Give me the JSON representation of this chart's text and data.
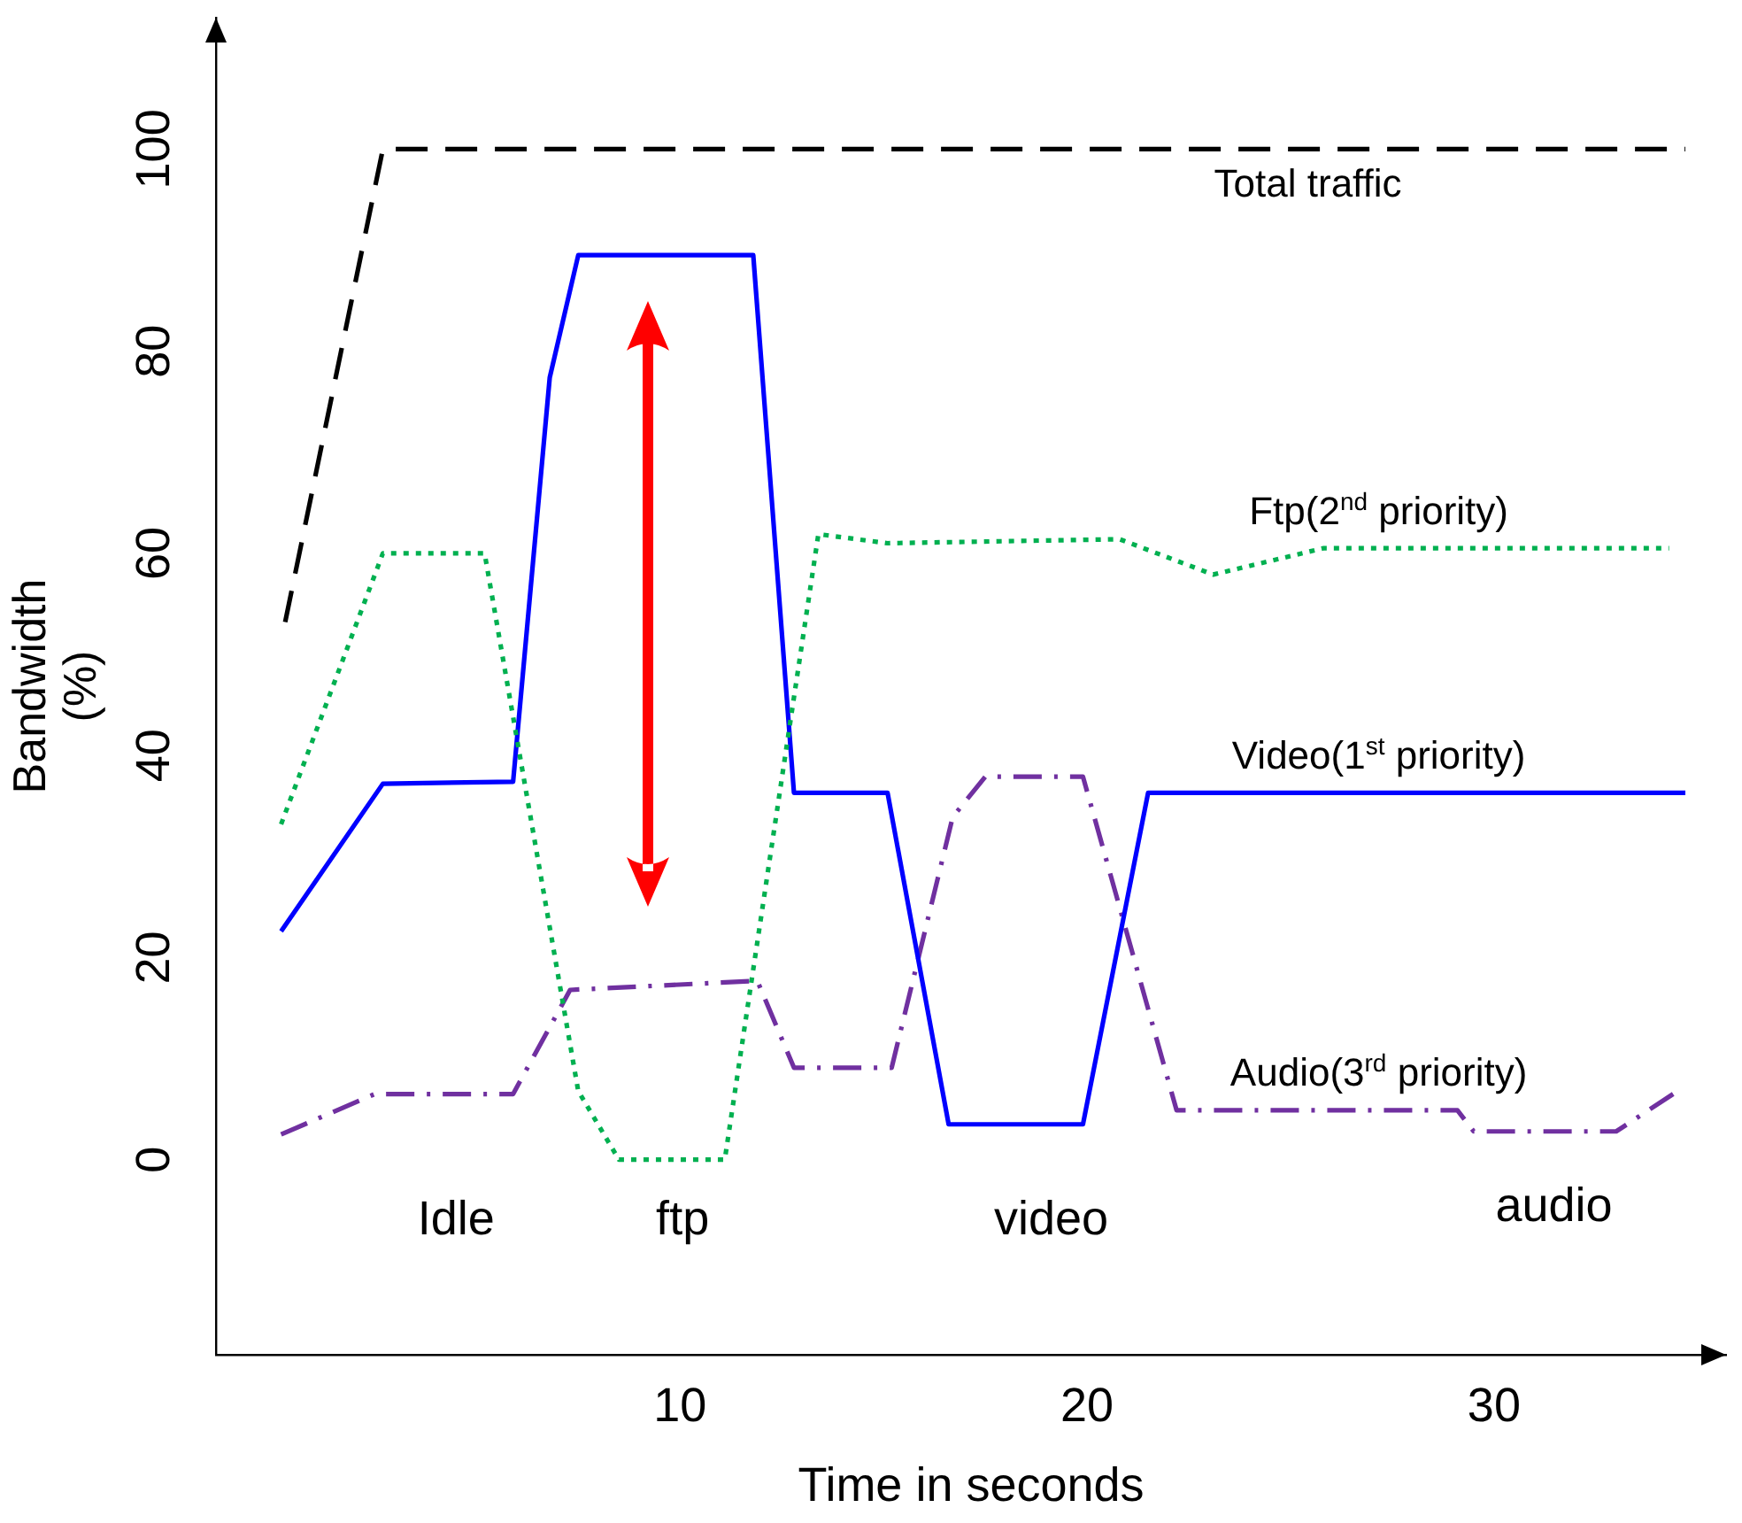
{
  "chart_data": {
    "type": "line",
    "xlabel": "Time in seconds",
    "ylabel": "Bandwidth\n(%)",
    "xlim": [
      -1.4,
      35.7
    ],
    "ylim": [
      -19.3,
      113
    ],
    "xticks": [
      10,
      20,
      30
    ],
    "yticks": [
      0,
      20,
      40,
      60,
      80,
      100
    ],
    "grid": false,
    "legend": false,
    "marker": "none",
    "series": [
      {
        "name": "Total traffic",
        "color": "#000000",
        "line_style": "dashed",
        "x": [
          0.3,
          2.7,
          34.7
        ],
        "values": [
          53.2,
          100,
          100
        ]
      },
      {
        "name": "Ftp(2$^{nd}$ priority)",
        "color": "#00b050",
        "line_style": "dotted",
        "x": [
          0.2,
          2.7,
          5.2,
          7.5,
          8.5,
          11.1,
          13.4,
          15.1,
          20.8,
          23.1,
          25.8,
          34.3
        ],
        "values": [
          33.2,
          60,
          60,
          6.8,
          0,
          0,
          61.9,
          61,
          61.4,
          57.9,
          60.5,
          60.5
        ]
      },
      {
        "name": "Video(1$^{st}$ priority)",
        "color": "#0000ff",
        "line_style": "solid",
        "x": [
          0.2,
          2.7,
          5.9,
          6.8,
          7.5,
          11.8,
          12.8,
          15.1,
          16.6,
          19.9,
          21.5,
          34.7
        ],
        "values": [
          22.6,
          37.2,
          37.4,
          77.4,
          89.5,
          89.5,
          36.3,
          36.3,
          3.5,
          3.5,
          36.3,
          36.3
        ]
      },
      {
        "name": "Audio(3$^{rd}$ priority)",
        "color": "#7030a0",
        "line_style": "dashdot",
        "x": [
          0.2,
          2.5,
          5.9,
          7.3,
          11.9,
          12.8,
          15.2,
          16.7,
          17.5,
          19.9,
          22.2,
          29.1,
          29.5,
          33.0,
          34.4
        ],
        "values": [
          2.5,
          6.5,
          6.5,
          16.8,
          17.7,
          9.1,
          9.1,
          33.9,
          37.9,
          37.9,
          4.9,
          4.9,
          2.8,
          2.8,
          6.5
        ]
      }
    ],
    "annotations": [
      "Idle",
      "ftp",
      "video",
      "audio"
    ]
  }
}
